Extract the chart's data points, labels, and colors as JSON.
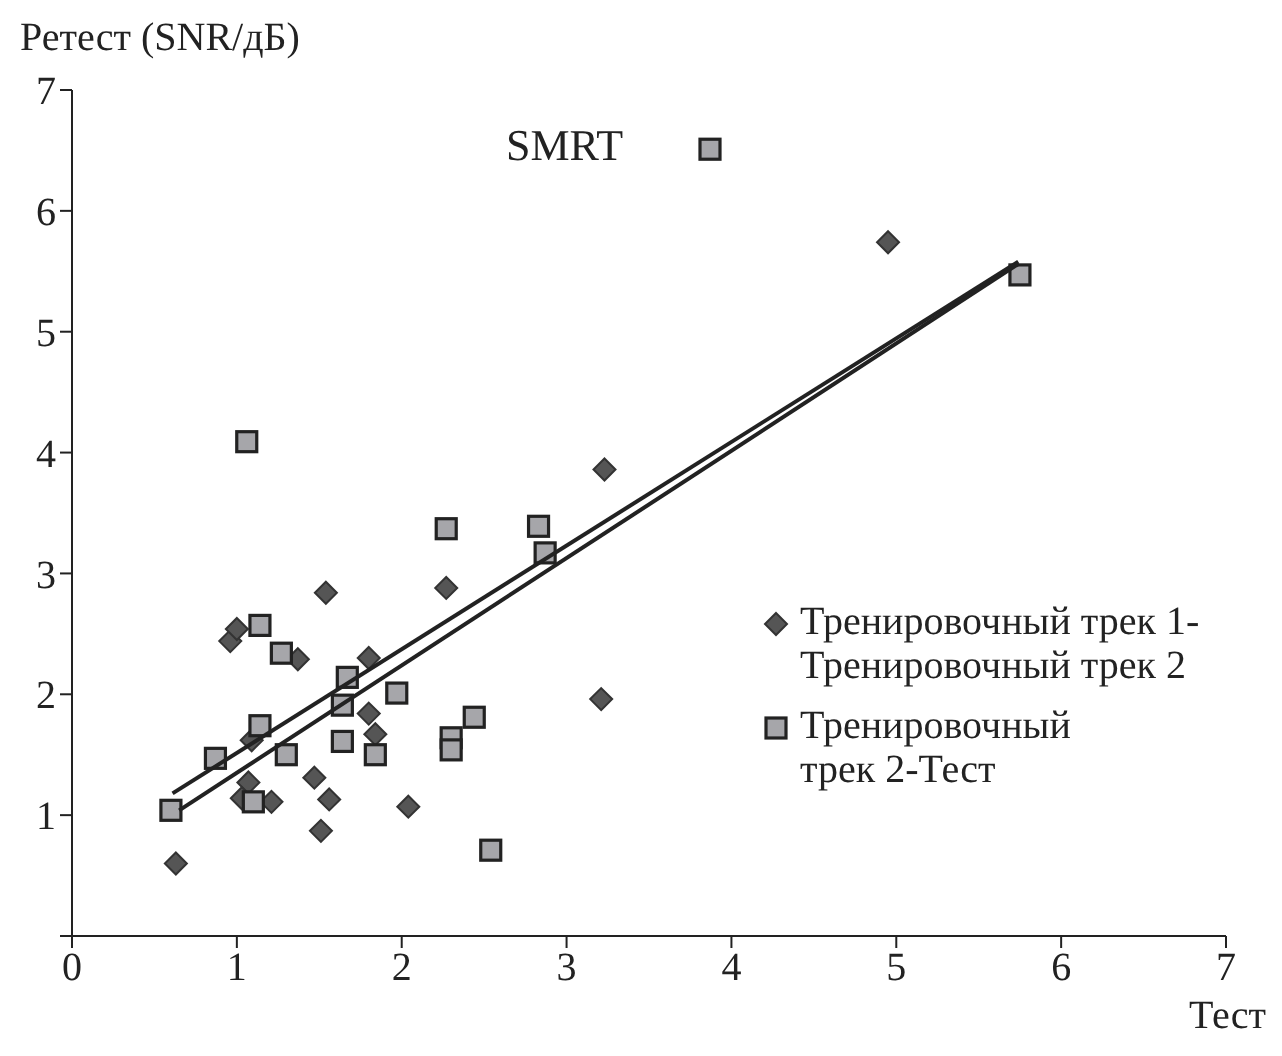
{
  "chart_data": {
    "type": "scatter",
    "xlabel": "Тест",
    "ylabel": "Ретест (SNR/дБ)",
    "annotations": [
      "SMRT"
    ],
    "xlim": [
      0,
      7
    ],
    "ylim": [
      0,
      7
    ],
    "xticks": [
      0,
      1,
      2,
      3,
      4,
      5,
      6,
      7
    ],
    "yticks": [
      {
        "value": 0,
        "label": null
      },
      1,
      2,
      3,
      4,
      5,
      6,
      7
    ],
    "grid": false,
    "legend": "right",
    "series": [
      {
        "name": "Тренировочный трек 1-Тренировочный трек 2",
        "color": "#555555",
        "marker": "diamond",
        "x": [
          0.63,
          0.96,
          1.0,
          1.07,
          1.03,
          1.21,
          1.09,
          1.37,
          1.54,
          1.47,
          1.56,
          1.51,
          1.8,
          1.8,
          1.84,
          2.04,
          2.27,
          3.21,
          3.23,
          4.95
        ],
        "values": [
          0.6,
          2.44,
          2.54,
          1.27,
          1.14,
          1.11,
          1.62,
          2.29,
          2.84,
          1.31,
          1.13,
          0.87,
          2.3,
          1.84,
          1.67,
          1.07,
          2.88,
          1.96,
          3.86,
          5.74
        ]
      },
      {
        "name": "Тренировочный трек 2-Тест",
        "color": "#a6a6aa",
        "marker": "square",
        "x": [
          0.6,
          0.87,
          1.1,
          1.14,
          1.14,
          1.27,
          1.3,
          1.64,
          1.64,
          1.67,
          1.84,
          1.97,
          2.3,
          2.3,
          2.44,
          2.54,
          2.27,
          2.83,
          2.87,
          1.06,
          3.87,
          5.75
        ],
        "values": [
          1.04,
          1.47,
          1.11,
          2.57,
          1.74,
          2.34,
          1.5,
          1.61,
          1.91,
          2.14,
          1.5,
          2.01,
          1.64,
          1.54,
          1.81,
          0.71,
          3.37,
          3.39,
          3.17,
          4.09,
          6.51,
          5.47
        ]
      },
      {
        "type": "line",
        "color": "#222222",
        "marker": "none",
        "x": [
          0.61,
          5.74
        ],
        "values": [
          1.18,
          5.58
        ]
      },
      {
        "type": "line",
        "color": "#222222",
        "marker": "none",
        "x": [
          0.65,
          5.74
        ],
        "values": [
          1.04,
          5.56
        ]
      }
    ]
  }
}
